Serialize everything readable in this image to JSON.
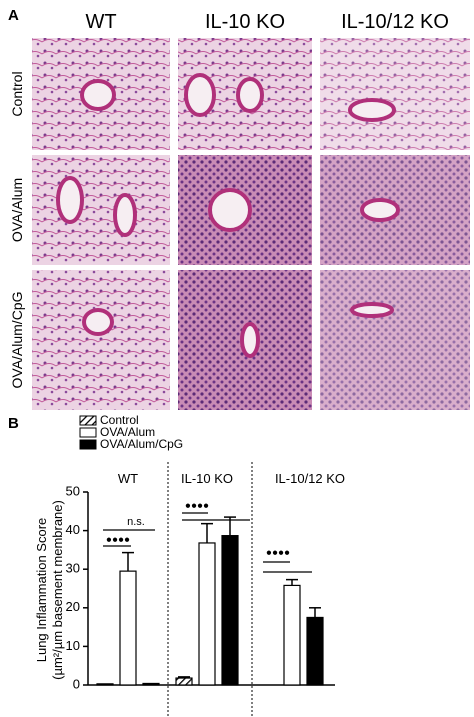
{
  "panels": {
    "a": "A",
    "b": "B"
  },
  "columns": [
    "WT",
    "IL-10 KO",
    "IL-10/12 KO"
  ],
  "rows": [
    "Control",
    "OVA/Alum",
    "OVA/Alum/CpG"
  ],
  "chart_data": {
    "type": "bar",
    "y_label": [
      "Lung Inflammation Score",
      "(µm²/µm basement membrane)"
    ],
    "categories": [
      "WT",
      "IL-10 KO",
      "IL-10/12 KO"
    ],
    "series": [
      {
        "name": "Control",
        "color": "#000000",
        "pattern": "hatch",
        "values": [
          0.3,
          1.8,
          null
        ],
        "errors": [
          0,
          0.3,
          null
        ]
      },
      {
        "name": "OVA/Alum",
        "color": "#ffffff",
        "values": [
          29.5,
          36.8,
          25.8
        ],
        "errors": [
          4.8,
          5,
          1.5
        ]
      },
      {
        "name": "OVA/Alum/CpG",
        "color": "#000000",
        "values": [
          0.4,
          38.7,
          17.5
        ],
        "errors": [
          0,
          4.8,
          2.5
        ]
      }
    ],
    "ylim": [
      0,
      50
    ],
    "yticks": [
      0,
      10,
      20,
      30,
      40,
      50
    ],
    "annotations": [
      "n.s.",
      "●●●●",
      "●●●●",
      "●●●●"
    ]
  }
}
